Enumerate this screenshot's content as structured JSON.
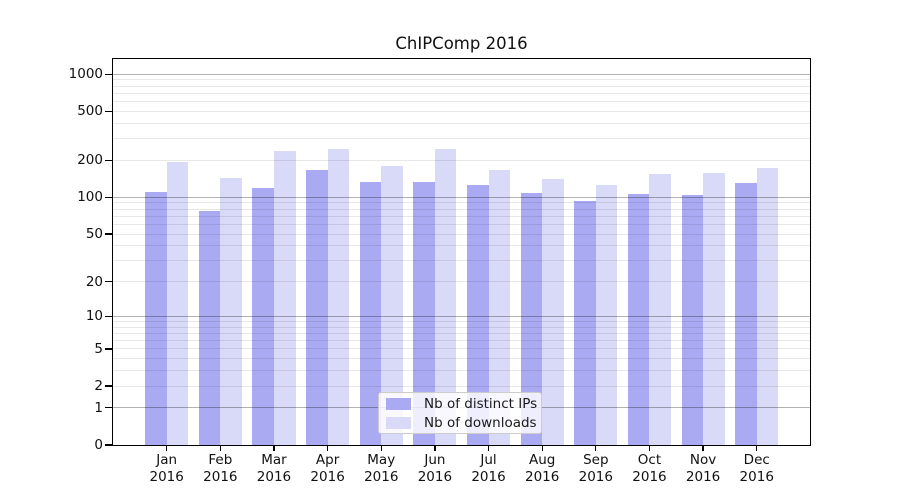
{
  "chart_data": {
    "type": "bar",
    "title": "ChIPComp 2016",
    "categories": [
      "Jan 2016",
      "Feb 2016",
      "Mar 2016",
      "Apr 2016",
      "May 2016",
      "Jun 2016",
      "Jul 2016",
      "Aug 2016",
      "Sep 2016",
      "Oct 2016",
      "Nov 2016",
      "Dec 2016"
    ],
    "series": [
      {
        "name": "Nb of distinct IPs",
        "color": "#aaaaf2",
        "values": [
          110,
          78,
          120,
          168,
          134,
          134,
          127,
          108,
          93,
          107,
          105,
          130
        ]
      },
      {
        "name": "Nb of downloads",
        "color": "#d9d9f8",
        "values": [
          196,
          145,
          240,
          250,
          181,
          247,
          167,
          140,
          126,
          154,
          158,
          172
        ]
      }
    ],
    "y_axis": {
      "scale": "log10(value+1)",
      "tick_values": [
        0,
        1,
        2,
        5,
        10,
        20,
        50,
        100,
        200,
        500,
        1000
      ],
      "major_gridline_values": [
        1,
        10,
        100,
        1000
      ],
      "ylim": [
        0,
        1330
      ]
    },
    "xlabel": "",
    "ylabel": "",
    "grid": "on",
    "legend_position": "inside-bottom-center",
    "colors": {
      "major_grid": "rgba(0,0,0,0.30)",
      "minor_grid": "rgba(0,0,0,0.09)",
      "axis": "#000000",
      "background": "#ffffff"
    }
  }
}
